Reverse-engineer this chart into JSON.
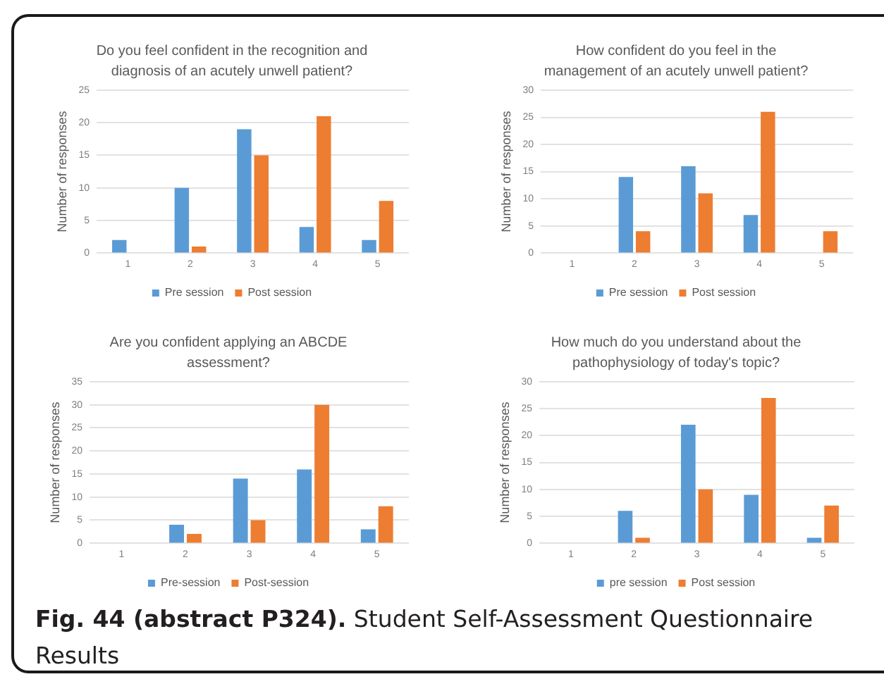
{
  "chart_data": [
    {
      "type": "bar",
      "title": "Do you feel confident in the recognition and diagnosis of an acutely unwell patient?",
      "ylabel": "Number of responses",
      "categories": [
        "1",
        "2",
        "3",
        "4",
        "5"
      ],
      "series": [
        {
          "name": "Pre session",
          "color": "#5b9bd5",
          "values": [
            2,
            10,
            19,
            4,
            2
          ]
        },
        {
          "name": "Post session",
          "color": "#ed7d31",
          "values": [
            0,
            1,
            15,
            21,
            8
          ]
        }
      ],
      "ylim": [
        0,
        25
      ],
      "yticks": [
        0,
        5,
        10,
        15,
        20,
        25
      ],
      "grid": "y",
      "legend": "bottom"
    },
    {
      "type": "bar",
      "title": "How confident do you feel in the management of an acutely unwell patient?",
      "ylabel": "Number of responses",
      "categories": [
        "1",
        "2",
        "3",
        "4",
        "5"
      ],
      "series": [
        {
          "name": "Pre session",
          "color": "#5b9bd5",
          "values": [
            0,
            14,
            16,
            7,
            0
          ]
        },
        {
          "name": "Post session",
          "color": "#ed7d31",
          "values": [
            0,
            4,
            11,
            26,
            4
          ]
        }
      ],
      "ylim": [
        0,
        30
      ],
      "yticks": [
        0,
        5,
        10,
        15,
        20,
        25,
        30
      ],
      "grid": "y",
      "legend": "bottom"
    },
    {
      "type": "bar",
      "title": "Are you confident applying an ABCDE assessment?",
      "ylabel": "Number of responses",
      "categories": [
        "1",
        "2",
        "3",
        "4",
        "5"
      ],
      "series": [
        {
          "name": "Pre-session",
          "color": "#5b9bd5",
          "values": [
            0,
            4,
            14,
            16,
            3
          ]
        },
        {
          "name": "Post-session",
          "color": "#ed7d31",
          "values": [
            0,
            2,
            5,
            30,
            8
          ]
        }
      ],
      "ylim": [
        0,
        35
      ],
      "yticks": [
        0,
        5,
        10,
        15,
        20,
        25,
        30,
        35
      ],
      "grid": "y",
      "legend": "bottom"
    },
    {
      "type": "bar",
      "title": "How much do you understand about the pathophysiology of today's topic?",
      "ylabel": "Number of responses",
      "categories": [
        "1",
        "2",
        "3",
        "4",
        "5"
      ],
      "series": [
        {
          "name": "pre session",
          "color": "#5b9bd5",
          "values": [
            0,
            6,
            22,
            9,
            1
          ]
        },
        {
          "name": "Post session",
          "color": "#ed7d31",
          "values": [
            0,
            1,
            10,
            27,
            7
          ]
        }
      ],
      "ylim": [
        0,
        30
      ],
      "yticks": [
        0,
        5,
        10,
        15,
        20,
        25,
        30
      ],
      "grid": "y",
      "legend": "bottom",
      "annotations": [
        "Fig. 44 (abstract P324). Student Self-Assessment Questionnaire Results"
      ]
    }
  ]
}
